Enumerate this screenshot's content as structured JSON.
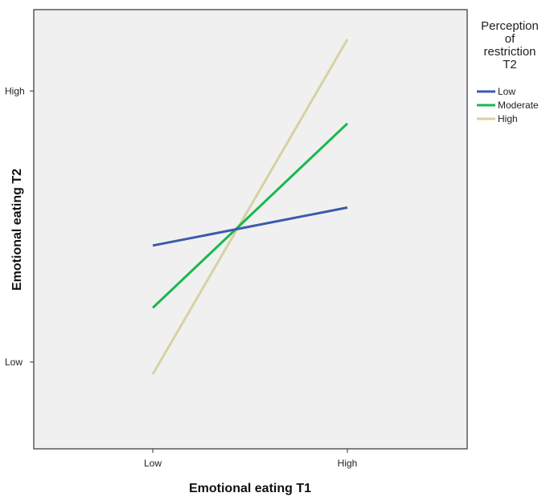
{
  "chart_data": {
    "type": "line",
    "title": "",
    "xlabel": "Emotional eating T1",
    "ylabel": "Emotional eating T2",
    "categories": [
      "Low",
      "High"
    ],
    "y_ticks": [
      {
        "label": "Low",
        "value": 0
      },
      {
        "label": "High",
        "value": 1
      }
    ],
    "ylim": [
      -0.32,
      1.3
    ],
    "grid": false,
    "legend": {
      "title_lines": [
        "Perception",
        "of",
        "restriction",
        "T2"
      ],
      "placement": "right"
    },
    "series": [
      {
        "name": "Low",
        "color": "#3b5bab",
        "values": [
          0.43,
          0.57
        ]
      },
      {
        "name": "Moderate",
        "color": "#19b84c",
        "values": [
          0.2,
          0.88
        ]
      },
      {
        "name": "High",
        "color": "#d6d2a1",
        "values": [
          -0.045,
          1.19
        ]
      }
    ]
  }
}
